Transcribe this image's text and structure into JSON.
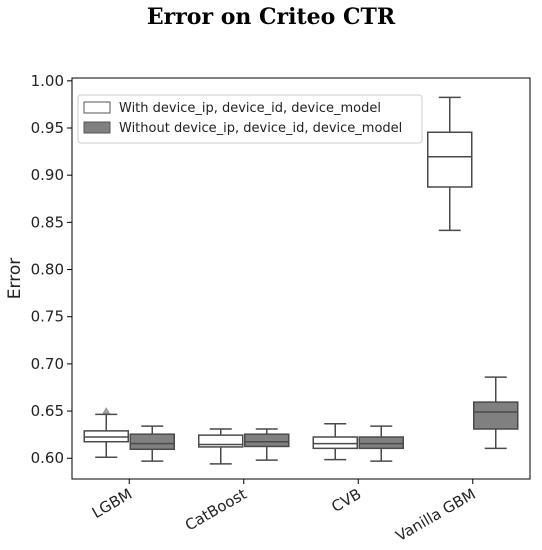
{
  "chart_data": {
    "type": "box",
    "title": "Error on Criteo CTR",
    "xlabel": "",
    "ylabel": "Error",
    "ylim": [
      0.578,
      1.003
    ],
    "yticks": [
      0.6,
      0.65,
      0.7,
      0.75,
      0.8,
      0.85,
      0.9,
      0.95,
      1.0
    ],
    "ytick_labels": [
      "0.60",
      "0.65",
      "0.70",
      "0.75",
      "0.80",
      "0.85",
      "0.90",
      "0.95",
      "1.00"
    ],
    "categories": [
      "LGBM",
      "CatBoost",
      "CVB",
      "Vanilla GBM"
    ],
    "legend_position": "top-left",
    "grid": false,
    "series": [
      {
        "name": "With device_ip, device_id, device_model",
        "color": "#ffffff",
        "boxes": [
          {
            "whislo": 0.601,
            "q1": 0.6175,
            "med": 0.6225,
            "q3": 0.629,
            "whishi": 0.6465,
            "outliers": [
              0.65
            ]
          },
          {
            "whislo": 0.594,
            "q1": 0.612,
            "med": 0.6145,
            "q3": 0.6245,
            "whishi": 0.631,
            "outliers": []
          },
          {
            "whislo": 0.5985,
            "q1": 0.6105,
            "med": 0.6155,
            "q3": 0.6225,
            "whishi": 0.6365,
            "outliers": []
          },
          {
            "whislo": 0.8415,
            "q1": 0.8875,
            "med": 0.9195,
            "q3": 0.9455,
            "whishi": 0.9825,
            "outliers": []
          }
        ]
      },
      {
        "name": "Without device_ip, device_id, device_model",
        "color": "#808080",
        "boxes": [
          {
            "whislo": 0.597,
            "q1": 0.6095,
            "med": 0.6155,
            "q3": 0.6255,
            "whishi": 0.634,
            "outliers": []
          },
          {
            "whislo": 0.598,
            "q1": 0.6125,
            "med": 0.6175,
            "q3": 0.6255,
            "whishi": 0.631,
            "outliers": []
          },
          {
            "whislo": 0.597,
            "q1": 0.6105,
            "med": 0.6155,
            "q3": 0.6225,
            "whishi": 0.634,
            "outliers": []
          },
          {
            "whislo": 0.6105,
            "q1": 0.631,
            "med": 0.649,
            "q3": 0.6595,
            "whishi": 0.686,
            "outliers": []
          }
        ]
      }
    ]
  }
}
